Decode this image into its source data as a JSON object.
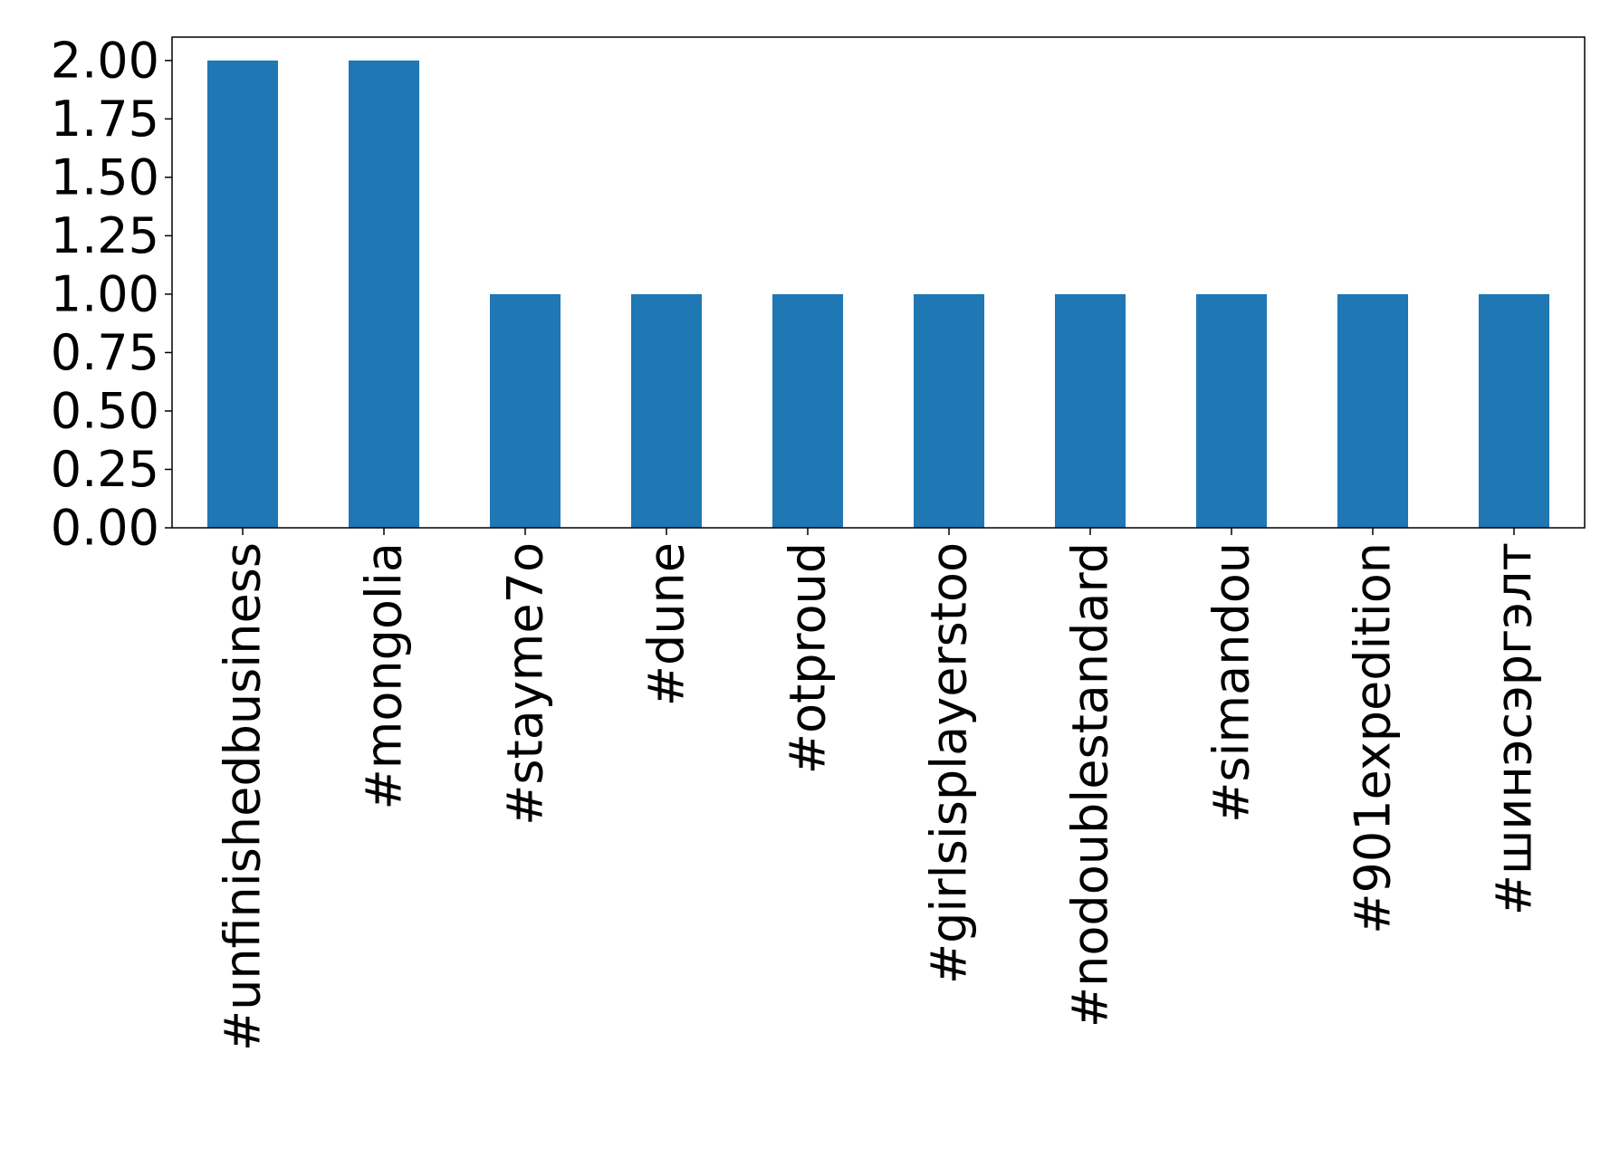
{
  "chart_data": {
    "type": "bar",
    "title": "",
    "xlabel": "",
    "ylabel": "",
    "categories": [
      "#unfinishedbusiness",
      "#mongolia",
      "#stayme7o",
      "#dune",
      "#otproud",
      "#girlsisplayerstoo",
      "#nodoublestandard",
      "#simandou",
      "#901expedition",
      "#шинэсэргэлт"
    ],
    "values": [
      2,
      2,
      1,
      1,
      1,
      1,
      1,
      1,
      1,
      1
    ],
    "ylim": [
      0,
      2.1
    ],
    "yticks": [
      "0.00",
      "0.25",
      "0.50",
      "0.75",
      "1.00",
      "1.25",
      "1.50",
      "1.75",
      "2.00"
    ],
    "bar_color": "#1f77b4",
    "grid": false,
    "legend": "none"
  }
}
